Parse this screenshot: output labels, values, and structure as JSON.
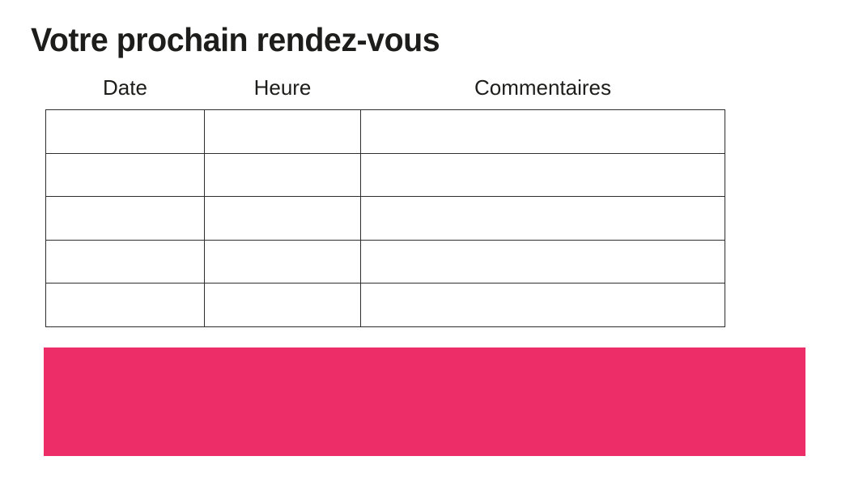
{
  "section": {
    "title": "Votre prochain rendez-vous"
  },
  "table": {
    "headers": [
      "Date",
      "Heure",
      "Commentaires"
    ],
    "column_keys": [
      "date",
      "heure",
      "commentaires"
    ],
    "rows": [
      [
        "",
        "",
        ""
      ],
      [
        "",
        "",
        ""
      ],
      [
        "",
        "",
        ""
      ],
      [
        "",
        "",
        ""
      ],
      [
        "",
        "",
        ""
      ]
    ],
    "border_color": "#2e2e2e"
  },
  "banner": {
    "text": "",
    "color": "#ED2D68"
  },
  "colors": {
    "text": "#1d1d1b",
    "background": "#ffffff"
  }
}
